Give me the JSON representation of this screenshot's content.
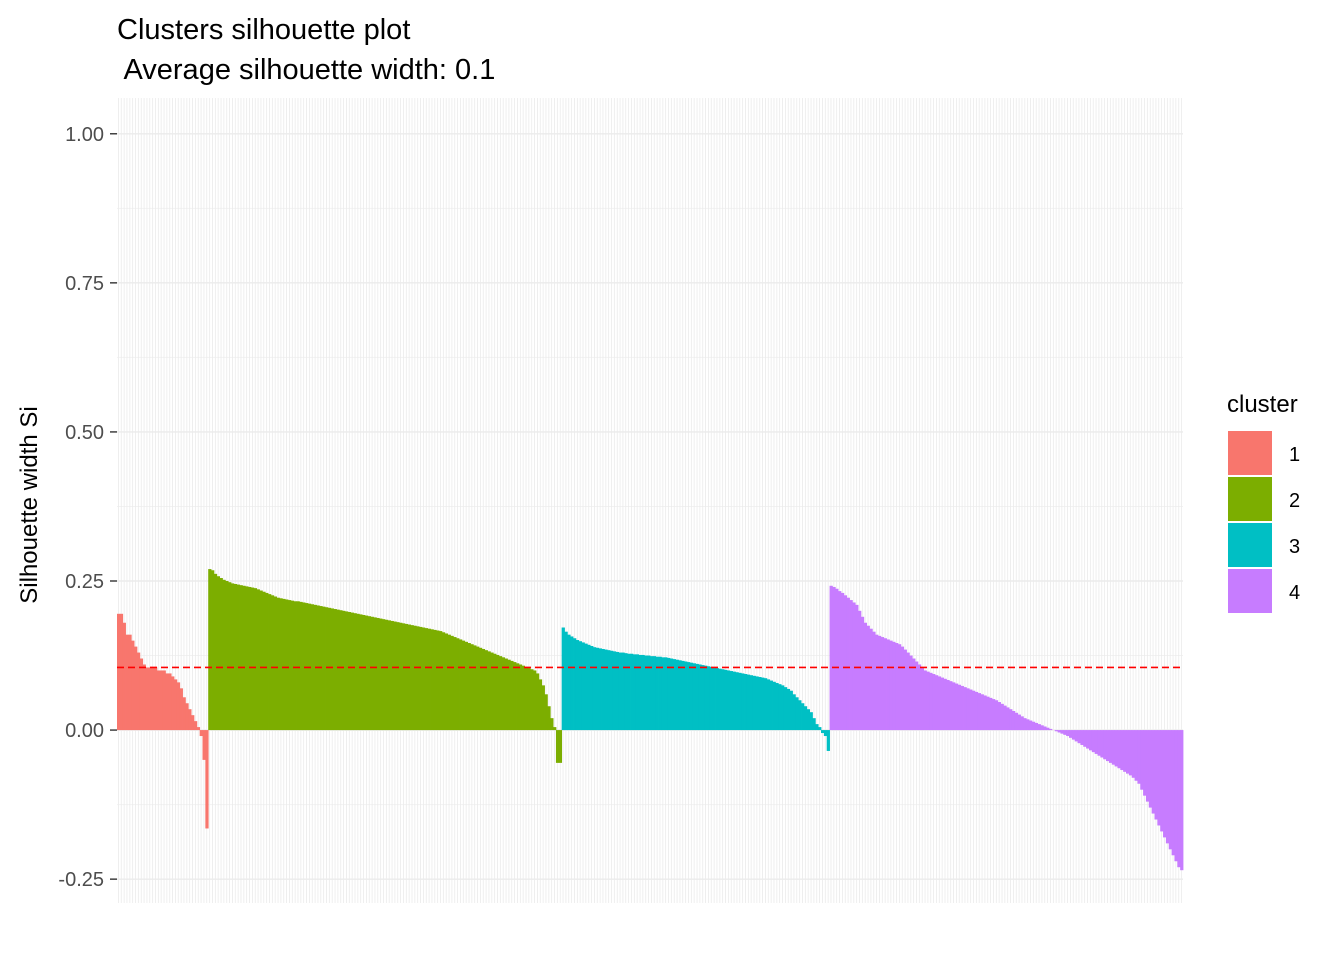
{
  "chart_data": {
    "type": "bar",
    "title": "Clusters silhouette plot",
    "subtitle": " Average silhouette width: 0.1",
    "xlabel": "",
    "ylabel": "Silhouette width Si",
    "ylim": [
      -0.29,
      1.06
    ],
    "yticks": [
      {
        "value": 1.0,
        "label": "1.00"
      },
      {
        "value": 0.75,
        "label": "0.75"
      },
      {
        "value": 0.5,
        "label": "0.50"
      },
      {
        "value": 0.25,
        "label": "0.25"
      },
      {
        "value": 0.0,
        "label": "0.00"
      },
      {
        "value": -0.25,
        "label": "-0.25"
      }
    ],
    "grid": true,
    "average_line": {
      "value": 0.105,
      "color": "#FF0000",
      "style": "dashed"
    },
    "legend": {
      "title": "cluster",
      "position": "right"
    },
    "series": [
      {
        "name": "1",
        "color": "#F8766D",
        "values": [
          0.195,
          0.195,
          0.18,
          0.16,
          0.16,
          0.15,
          0.14,
          0.13,
          0.12,
          0.11,
          0.105,
          0.105,
          0.105,
          0.105,
          0.1,
          0.1,
          0.1,
          0.095,
          0.095,
          0.09,
          0.085,
          0.08,
          0.07,
          0.055,
          0.045,
          0.035,
          0.025,
          0.015,
          0.005,
          -0.01,
          -0.05,
          -0.165
        ]
      },
      {
        "name": "2",
        "color": "#7CAE00",
        "values": [
          0.27,
          0.268,
          0.262,
          0.258,
          0.255,
          0.252,
          0.25,
          0.248,
          0.246,
          0.245,
          0.244,
          0.243,
          0.242,
          0.241,
          0.24,
          0.239,
          0.238,
          0.236,
          0.234,
          0.232,
          0.23,
          0.228,
          0.226,
          0.224,
          0.222,
          0.221,
          0.22,
          0.219,
          0.218,
          0.217,
          0.216,
          0.216,
          0.215,
          0.214,
          0.213,
          0.212,
          0.211,
          0.21,
          0.209,
          0.208,
          0.207,
          0.206,
          0.205,
          0.204,
          0.203,
          0.202,
          0.201,
          0.2,
          0.199,
          0.198,
          0.197,
          0.196,
          0.195,
          0.194,
          0.193,
          0.192,
          0.191,
          0.19,
          0.189,
          0.188,
          0.187,
          0.186,
          0.185,
          0.184,
          0.183,
          0.182,
          0.181,
          0.18,
          0.179,
          0.178,
          0.177,
          0.176,
          0.175,
          0.174,
          0.173,
          0.172,
          0.171,
          0.17,
          0.169,
          0.168,
          0.167,
          0.166,
          0.164,
          0.162,
          0.16,
          0.158,
          0.156,
          0.154,
          0.152,
          0.15,
          0.148,
          0.146,
          0.144,
          0.142,
          0.14,
          0.138,
          0.136,
          0.134,
          0.132,
          0.13,
          0.128,
          0.126,
          0.124,
          0.122,
          0.12,
          0.118,
          0.116,
          0.114,
          0.112,
          0.11,
          0.108,
          0.106,
          0.104,
          0.102,
          0.1,
          0.095,
          0.085,
          0.075,
          0.06,
          0.04,
          0.02,
          0.005,
          -0.055,
          -0.055
        ]
      },
      {
        "name": "3",
        "color": "#00BFC4",
        "values": [
          0.172,
          0.165,
          0.16,
          0.157,
          0.154,
          0.151,
          0.149,
          0.147,
          0.145,
          0.143,
          0.141,
          0.139,
          0.138,
          0.137,
          0.136,
          0.135,
          0.134,
          0.133,
          0.132,
          0.131,
          0.13,
          0.13,
          0.129,
          0.128,
          0.128,
          0.127,
          0.127,
          0.126,
          0.126,
          0.125,
          0.125,
          0.124,
          0.124,
          0.123,
          0.123,
          0.122,
          0.122,
          0.121,
          0.12,
          0.119,
          0.118,
          0.117,
          0.116,
          0.115,
          0.114,
          0.113,
          0.112,
          0.111,
          0.11,
          0.109,
          0.108,
          0.107,
          0.106,
          0.105,
          0.104,
          0.103,
          0.102,
          0.101,
          0.1,
          0.099,
          0.098,
          0.097,
          0.096,
          0.095,
          0.094,
          0.093,
          0.092,
          0.091,
          0.09,
          0.089,
          0.088,
          0.087,
          0.085,
          0.083,
          0.081,
          0.079,
          0.077,
          0.075,
          0.072,
          0.069,
          0.066,
          0.06,
          0.055,
          0.05,
          0.045,
          0.04,
          0.035,
          0.03,
          0.02,
          0.01,
          0.005,
          -0.005,
          -0.01,
          -0.035
        ]
      },
      {
        "name": "4",
        "color": "#C77CFF",
        "values": [
          0.242,
          0.24,
          0.237,
          0.233,
          0.23,
          0.226,
          0.222,
          0.218,
          0.214,
          0.21,
          0.2,
          0.19,
          0.18,
          0.175,
          0.17,
          0.165,
          0.16,
          0.158,
          0.156,
          0.154,
          0.152,
          0.15,
          0.148,
          0.146,
          0.144,
          0.14,
          0.135,
          0.13,
          0.125,
          0.12,
          0.115,
          0.11,
          0.105,
          0.1,
          0.098,
          0.096,
          0.094,
          0.092,
          0.09,
          0.088,
          0.086,
          0.084,
          0.082,
          0.08,
          0.078,
          0.076,
          0.074,
          0.072,
          0.07,
          0.068,
          0.066,
          0.064,
          0.062,
          0.06,
          0.058,
          0.056,
          0.054,
          0.052,
          0.05,
          0.047,
          0.044,
          0.041,
          0.038,
          0.035,
          0.032,
          0.029,
          0.026,
          0.023,
          0.02,
          0.018,
          0.016,
          0.014,
          0.012,
          0.01,
          0.008,
          0.006,
          0.004,
          0.002,
          0.0,
          -0.002,
          -0.004,
          -0.006,
          -0.008,
          -0.01,
          -0.013,
          -0.016,
          -0.019,
          -0.022,
          -0.025,
          -0.028,
          -0.031,
          -0.034,
          -0.037,
          -0.04,
          -0.043,
          -0.046,
          -0.049,
          -0.052,
          -0.055,
          -0.058,
          -0.061,
          -0.064,
          -0.067,
          -0.07,
          -0.073,
          -0.076,
          -0.08,
          -0.085,
          -0.09,
          -0.1,
          -0.11,
          -0.12,
          -0.13,
          -0.14,
          -0.15,
          -0.16,
          -0.17,
          -0.18,
          -0.19,
          -0.2,
          -0.21,
          -0.22,
          -0.23,
          -0.235
        ]
      }
    ]
  }
}
